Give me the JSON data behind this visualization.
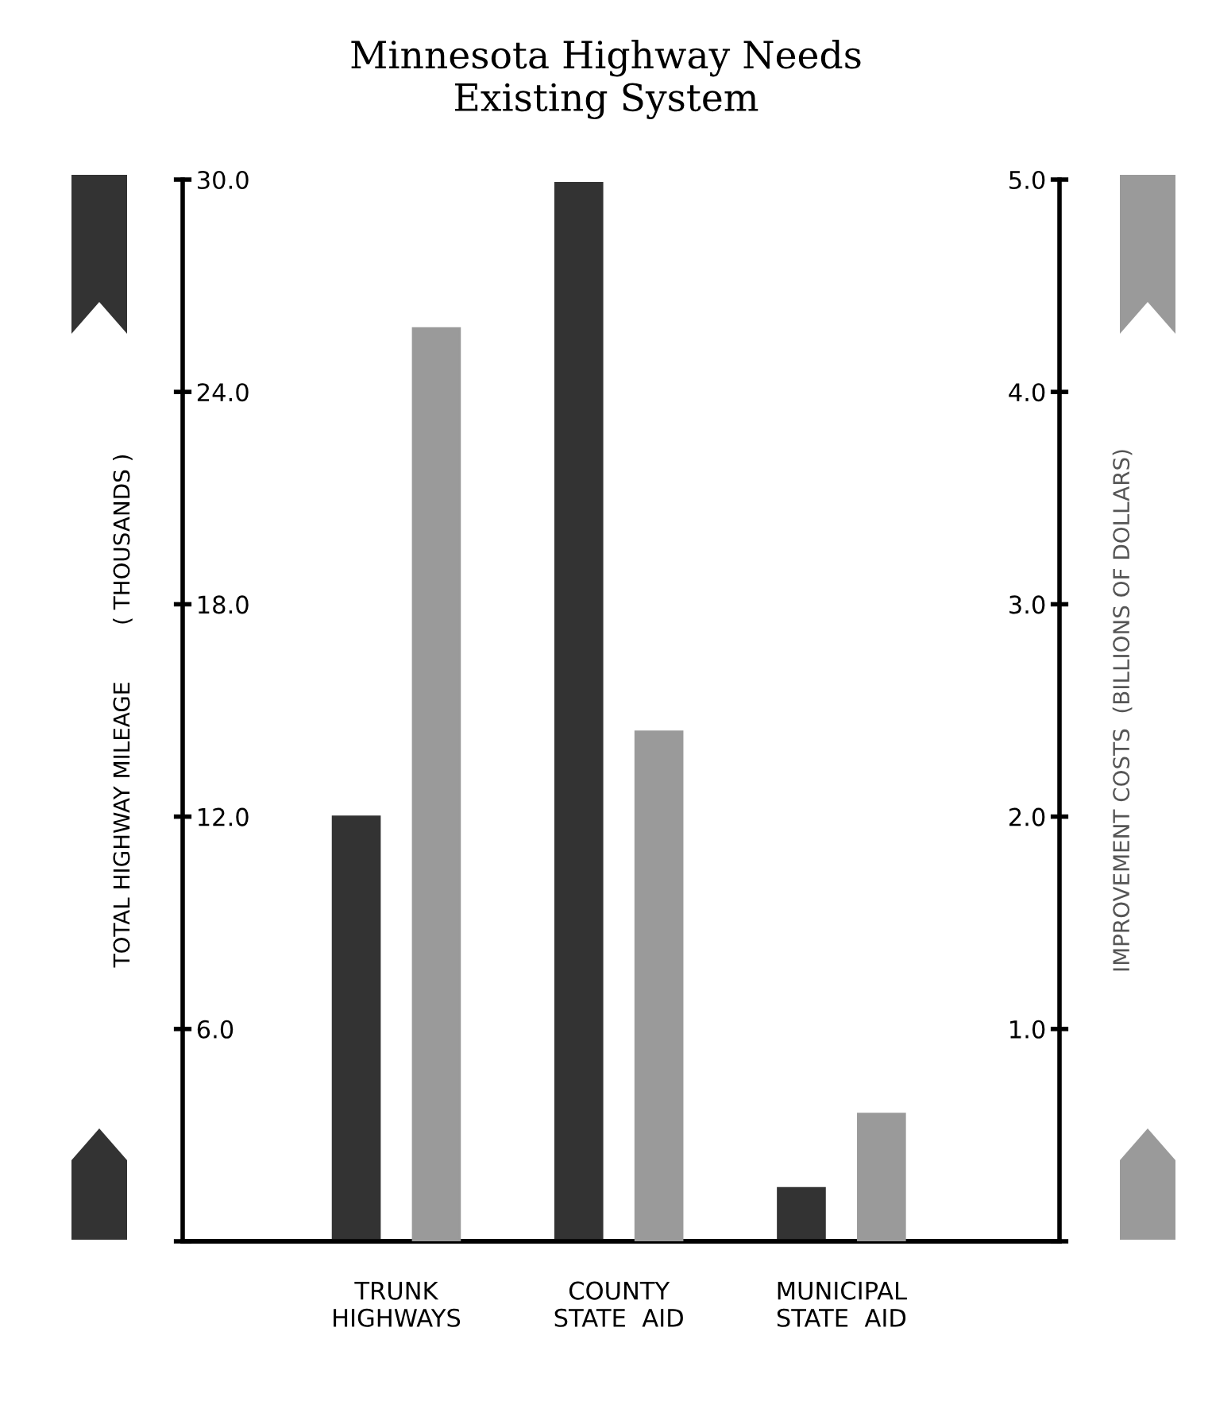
{
  "chart_data": {
    "type": "bar",
    "title": "Minnesota Highway Needs\nExisting System",
    "categories": [
      "TRUNK\nHIGHWAYS",
      "COUNTY\nSTATE  AID",
      "MUNICIPAL\nSTATE  AID"
    ],
    "ylabel": "TOTAL HIGHWAY MILEAGE        ( THOUSANDS )",
    "y2label": "IMPROVEMENT COSTS  (BILLIONS OF DOLLARS)",
    "series": [
      {
        "color": "#333333",
        "values": [
          12.0,
          29.9,
          1.5
        ],
        "axis": "y"
      },
      {
        "color": "#9a9a9a",
        "values": [
          4.3,
          2.4,
          0.6
        ],
        "axis": "y2"
      }
    ],
    "ylim": [
      0,
      30
    ],
    "yticks": [
      {
        "value": 0,
        "label": null
      },
      {
        "value": 6,
        "label": "6.0"
      },
      {
        "value": 12,
        "label": "12.0"
      },
      {
        "value": 18,
        "label": "18.0"
      },
      {
        "value": 24,
        "label": "24.0"
      },
      {
        "value": 30,
        "label": "30.0"
      }
    ],
    "y2lim": [
      0,
      5
    ],
    "y2ticks": [
      {
        "value": 0,
        "label": null
      },
      {
        "value": 1,
        "label": "1.0"
      },
      {
        "value": 2,
        "label": "2.0"
      },
      {
        "value": 3,
        "label": "3.0"
      },
      {
        "value": 4,
        "label": "4.0"
      },
      {
        "value": 5,
        "label": "5.0"
      }
    ],
    "grid": false,
    "legend": false
  }
}
